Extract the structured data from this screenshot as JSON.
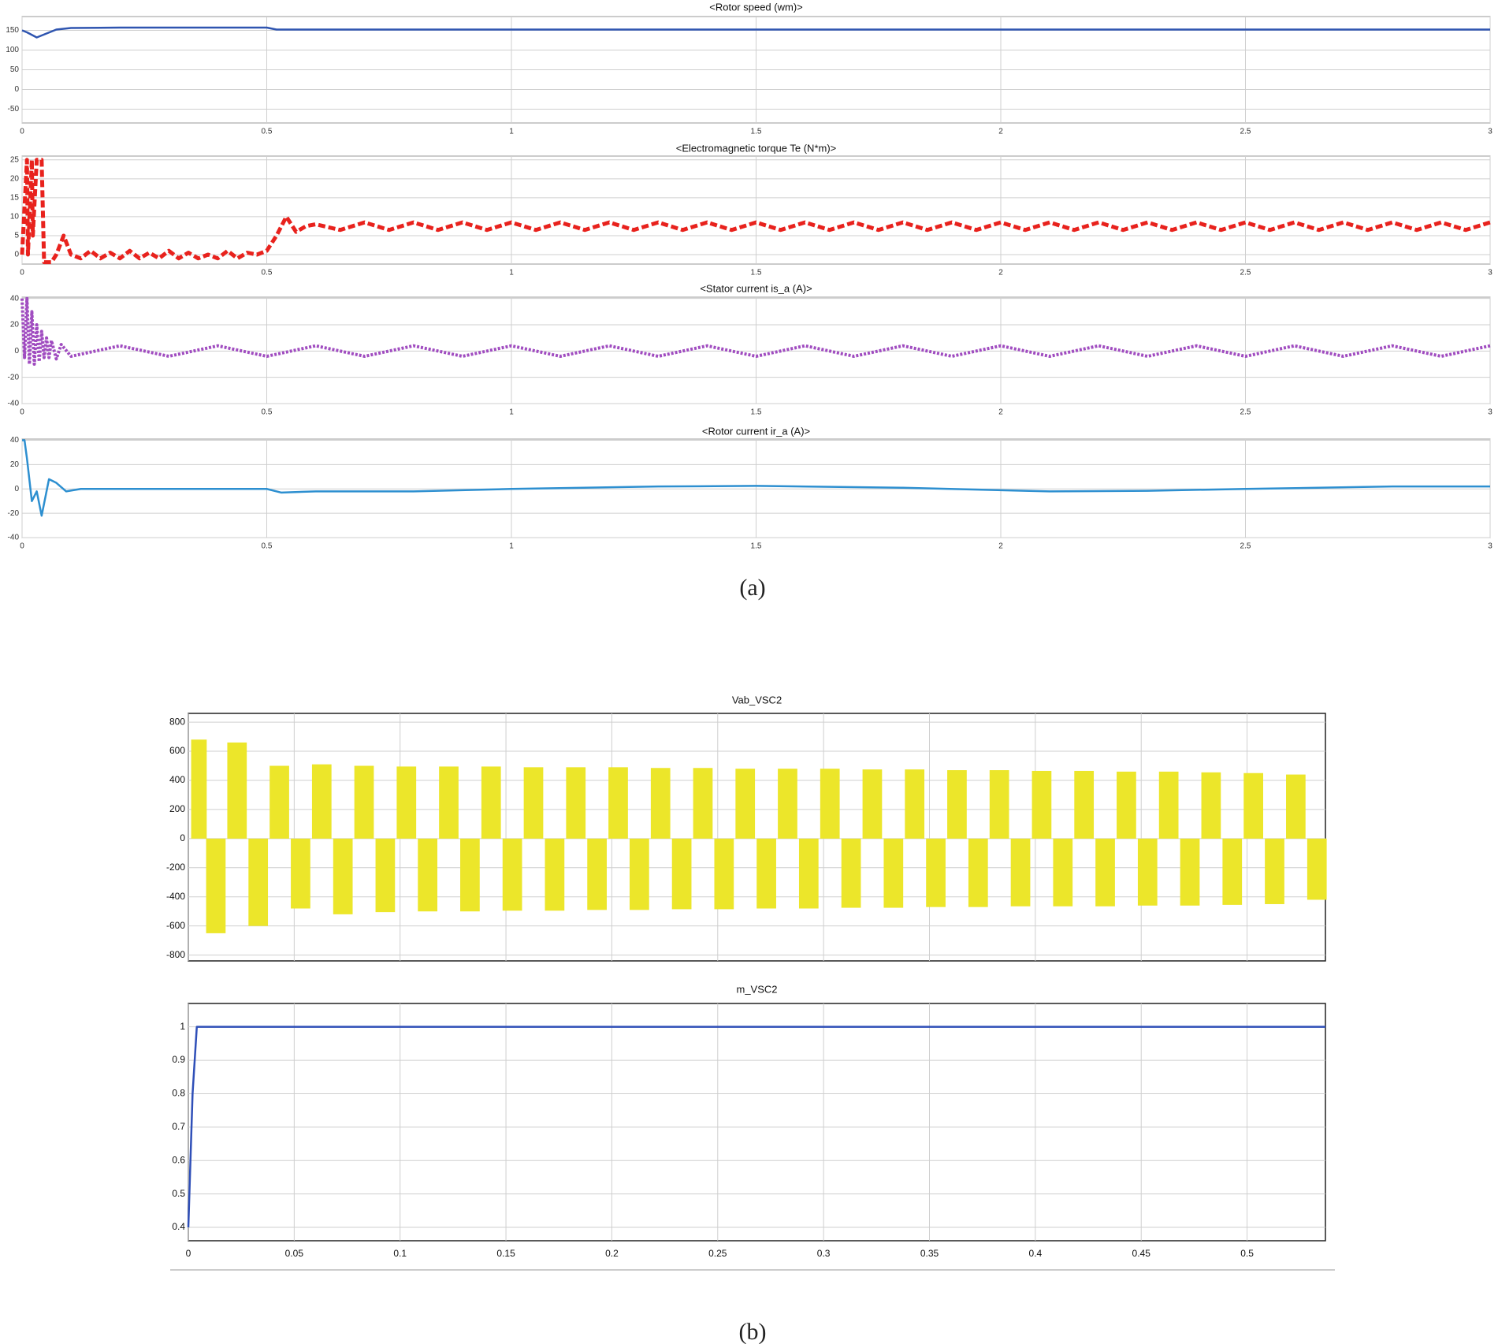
{
  "figure_labels": [
    "(a)",
    "(b)"
  ],
  "chart_data": [
    {
      "type": "line",
      "title": "<Rotor speed (wm)>",
      "color": "#2f55b0",
      "line_style": "solid",
      "x": [
        0,
        0.01,
        0.03,
        0.05,
        0.07,
        0.1,
        0.2,
        0.5,
        0.52,
        1,
        3
      ],
      "values": [
        150,
        145,
        132,
        142,
        152,
        156,
        157,
        157,
        152,
        152,
        152
      ],
      "xlim": [
        0,
        3
      ],
      "xticks": [
        0,
        0.5,
        1,
        1.5,
        2,
        2.5,
        3
      ],
      "ylim": [
        -85,
        185
      ],
      "yticks": [
        -50,
        0,
        50,
        100,
        150
      ],
      "grid": true
    },
    {
      "type": "line",
      "title": "<Electromagnetic torque Te (N*m)>",
      "color": "#e8221d",
      "line_style": "dashed",
      "x": [
        0,
        0.01,
        0.012,
        0.02,
        0.022,
        0.03,
        0.04,
        0.045,
        0.06,
        0.07,
        0.085,
        0.1,
        0.12,
        0.14,
        0.16,
        0.18,
        0.2,
        0.22,
        0.24,
        0.26,
        0.28,
        0.3,
        0.32,
        0.34,
        0.36,
        0.38,
        0.4,
        0.42,
        0.44,
        0.46,
        0.48,
        0.5,
        0.52,
        0.54,
        0.56,
        0.58,
        0.6,
        0.65,
        0.7,
        0.75,
        0.8,
        0.85,
        0.9,
        0.95,
        1,
        1.05,
        1.1,
        1.15,
        1.2,
        1.25,
        1.3,
        1.35,
        1.4,
        1.45,
        1.5,
        1.55,
        1.6,
        1.65,
        1.7,
        1.75,
        1.8,
        1.85,
        1.9,
        1.95,
        2,
        2.05,
        2.1,
        2.15,
        2.2,
        2.25,
        2.3,
        2.35,
        2.4,
        2.45,
        2.5,
        2.55,
        2.6,
        2.65,
        2.7,
        2.75,
        2.8,
        2.85,
        2.9,
        2.95,
        3
      ],
      "values": [
        0,
        25,
        0,
        25,
        5,
        25,
        25,
        -2,
        -2,
        0,
        5,
        0,
        -1,
        1,
        -1,
        0.5,
        -1,
        1,
        -1,
        0.5,
        -1,
        1,
        -1,
        0.5,
        -1,
        0,
        -1,
        1,
        -1,
        0.5,
        0,
        1,
        5,
        10,
        6,
        7.5,
        8,
        6.5,
        8.5,
        6.5,
        8.5,
        6.5,
        8.5,
        6.5,
        8.5,
        6.5,
        8.5,
        6.5,
        8.5,
        6.5,
        8.5,
        6.5,
        8.5,
        6.5,
        8.5,
        6.5,
        8.5,
        6.5,
        8.5,
        6.5,
        8.5,
        6.5,
        8.5,
        6.5,
        8.5,
        6.5,
        8.5,
        6.5,
        8.5,
        6.5,
        8.5,
        6.5,
        8.5,
        6.5,
        8.5,
        6.5,
        8.5,
        6.5,
        8.5,
        6.5,
        8.5,
        6.5,
        8.5,
        6.5,
        8.5
      ],
      "xlim": [
        0,
        3
      ],
      "xticks": [
        0,
        0.5,
        1,
        1.5,
        2,
        2.5,
        3
      ],
      "ylim": [
        -2.5,
        26
      ],
      "yticks": [
        0,
        5,
        10,
        15,
        20,
        25
      ],
      "grid": true
    },
    {
      "type": "line",
      "title": "<Stator current is_a (A)>",
      "color": "#a04cc0",
      "line_style": "dotted",
      "x": [
        0,
        0.005,
        0.01,
        0.015,
        0.02,
        0.025,
        0.03,
        0.035,
        0.04,
        0.045,
        0.05,
        0.055,
        0.06,
        0.07,
        0.08,
        0.1,
        0.2,
        0.3,
        0.4,
        0.5,
        0.6,
        0.7,
        0.8,
        0.9,
        1,
        1.1,
        1.2,
        1.3,
        1.4,
        1.5,
        1.6,
        1.7,
        1.8,
        1.9,
        2,
        2.1,
        2.2,
        2.3,
        2.4,
        2.5,
        2.6,
        2.7,
        2.8,
        2.9,
        3
      ],
      "values": [
        40,
        -5,
        40,
        -10,
        30,
        -10,
        20,
        -8,
        15,
        -5,
        10,
        -5,
        8,
        -6,
        5,
        -4,
        4,
        -4,
        4,
        -4,
        4,
        -4,
        4,
        -4,
        4,
        -4,
        4,
        -4,
        4,
        -4,
        4,
        -4,
        4,
        -4,
        4,
        -4,
        4,
        -4,
        4,
        -4,
        4,
        -4,
        4,
        -4,
        4
      ],
      "xlim": [
        0,
        3
      ],
      "xticks": [
        0,
        0.5,
        1,
        1.5,
        2,
        2.5,
        3
      ],
      "ylim": [
        -40,
        41
      ],
      "yticks": [
        -40,
        -20,
        0,
        20,
        40
      ],
      "grid": true
    },
    {
      "type": "line",
      "title": "<Rotor current ir_a (A)>",
      "color": "#2d8fd0",
      "line_style": "solid",
      "x": [
        0,
        0.005,
        0.01,
        0.02,
        0.03,
        0.04,
        0.055,
        0.07,
        0.09,
        0.12,
        0.2,
        0.5,
        0.53,
        0.6,
        0.8,
        1,
        1.3,
        1.5,
        1.8,
        2.1,
        2.3,
        2.5,
        2.8,
        3
      ],
      "values": [
        40,
        40,
        25,
        -10,
        -2,
        -22,
        8,
        5,
        -2,
        0,
        0,
        0,
        -3,
        -2,
        -2,
        0,
        2,
        2.5,
        1,
        -2,
        -1.5,
        0,
        2,
        2
      ],
      "xlim": [
        0,
        3
      ],
      "xticks": [
        0,
        0.5,
        1,
        1.5,
        2,
        2.5,
        3
      ],
      "ylim": [
        -40,
        41
      ],
      "yticks": [
        -40,
        -20,
        0,
        20,
        40
      ],
      "grid": true
    },
    {
      "type": "bar",
      "title": "Vab_VSC2",
      "color": "#ece62a",
      "show_xtick_labels": false,
      "x": [
        0.005,
        0.013,
        0.023,
        0.033,
        0.043,
        0.053,
        0.063,
        0.073,
        0.083,
        0.093,
        0.103,
        0.113,
        0.123,
        0.133,
        0.143,
        0.153,
        0.163,
        0.173,
        0.183,
        0.193,
        0.203,
        0.213,
        0.223,
        0.233,
        0.243,
        0.253,
        0.263,
        0.273,
        0.283,
        0.293,
        0.303,
        0.313,
        0.323,
        0.333,
        0.343,
        0.353,
        0.363,
        0.373,
        0.383,
        0.393,
        0.403,
        0.413,
        0.423,
        0.433,
        0.443,
        0.453,
        0.463,
        0.473,
        0.483,
        0.493,
        0.503,
        0.513,
        0.523,
        0.533
      ],
      "values": [
        680,
        -650,
        660,
        -600,
        500,
        -480,
        510,
        -520,
        500,
        -505,
        495,
        -500,
        495,
        -500,
        495,
        -495,
        490,
        -495,
        490,
        -490,
        490,
        -490,
        485,
        -485,
        485,
        -485,
        480,
        -480,
        480,
        -480,
        480,
        -475,
        475,
        -475,
        475,
        -470,
        470,
        -470,
        470,
        -465,
        465,
        -465,
        465,
        -465,
        460,
        -460,
        460,
        -460,
        455,
        -455,
        450,
        -450,
        440,
        -420
      ],
      "xlim": [
        0,
        0.537
      ],
      "xticks": [
        0,
        0.05,
        0.1,
        0.15,
        0.2,
        0.25,
        0.3,
        0.35,
        0.4,
        0.45,
        0.5
      ],
      "ylim": [
        -840,
        860
      ],
      "yticks": [
        -800,
        -600,
        -400,
        -200,
        0,
        200,
        400,
        600,
        800
      ],
      "grid": true
    },
    {
      "type": "line",
      "title": "m_VSC2",
      "color": "#2f4fb8",
      "line_style": "solid",
      "show_xtick_labels": true,
      "x": [
        0,
        0.002,
        0.004,
        0.537
      ],
      "values": [
        0.4,
        0.8,
        1,
        1
      ],
      "xlim": [
        0,
        0.537
      ],
      "xticks": [
        0,
        0.05,
        0.1,
        0.15,
        0.2,
        0.25,
        0.3,
        0.35,
        0.4,
        0.45,
        0.5
      ],
      "ylim": [
        0.36,
        1.07
      ],
      "yticks": [
        0.4,
        0.5,
        0.6,
        0.7,
        0.8,
        0.9,
        1
      ],
      "grid": true
    }
  ]
}
